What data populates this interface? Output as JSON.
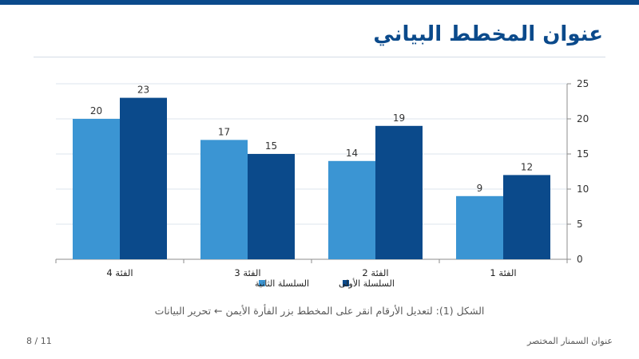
{
  "slide": {
    "title": "عنوان المخطط البياني",
    "caption": "الشكل (1): لتعديل الأرقام انقر على المخطط بزر الفأرة الأيمن ← تحرير البيانات",
    "footer_title": "عنوان السمنار المختصر",
    "page_number": "8 / 11"
  },
  "colors": {
    "accent": "#0b4a8b",
    "series_1": "#0b4a8b",
    "series_2": "#3b95d3"
  },
  "chart_data": {
    "type": "bar",
    "categories": [
      "الفئة 1",
      "الفئة 2",
      "الفئة 3",
      "الفئة 4"
    ],
    "series": [
      {
        "name": "السلسلة الأولى",
        "values": [
          12,
          19,
          15,
          23
        ],
        "color": "#0b4a8b"
      },
      {
        "name": "السلسلة الثانية",
        "values": [
          9,
          14,
          17,
          20
        ],
        "color": "#3b95d3"
      }
    ],
    "ylim": [
      0,
      25
    ],
    "yticks": [
      0,
      5,
      10,
      15,
      20,
      25
    ],
    "y_axis_side": "right",
    "category_order": "right-to-left",
    "grid": true,
    "data_labels": true,
    "legend": "bottom-center"
  }
}
